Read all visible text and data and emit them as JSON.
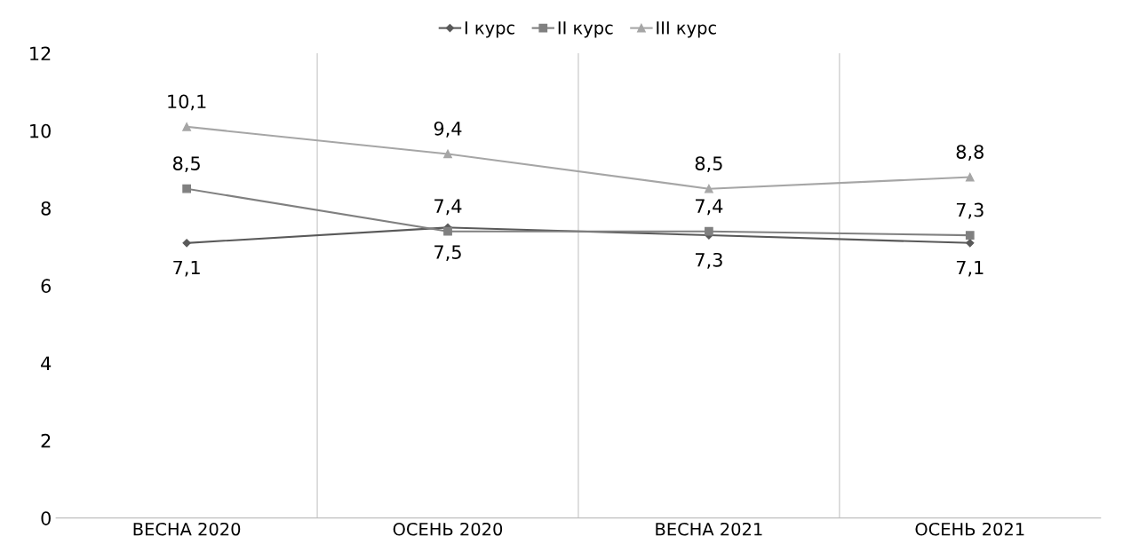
{
  "chart_data": {
    "type": "line",
    "categories": [
      "ВЕСНА 2020",
      "ОСЕНЬ 2020",
      "ВЕСНА 2021",
      "ОСЕНЬ 2021"
    ],
    "series": [
      {
        "name": "I курс",
        "color": "#595959",
        "marker": "diamond",
        "values": [
          7.1,
          7.5,
          7.3,
          7.1
        ],
        "value_labels": [
          "7,1",
          "7,5",
          "7,3",
          "7,1"
        ]
      },
      {
        "name": "II курс",
        "color": "#808080",
        "marker": "square",
        "values": [
          8.5,
          7.4,
          7.4,
          7.3
        ],
        "value_labels": [
          "8,5",
          "7,4",
          "7,4",
          "7,3"
        ]
      },
      {
        "name": "III курс",
        "color": "#a6a6a6",
        "marker": "triangle",
        "values": [
          10.1,
          9.4,
          8.5,
          8.8
        ],
        "value_labels": [
          "10,1",
          "9,4",
          "8,5",
          "8,8"
        ]
      }
    ],
    "ylim": [
      0,
      12
    ],
    "yticks": [
      0,
      2,
      4,
      6,
      8,
      10,
      12
    ],
    "grid": "x",
    "legend": "top",
    "line_style": "solid"
  }
}
